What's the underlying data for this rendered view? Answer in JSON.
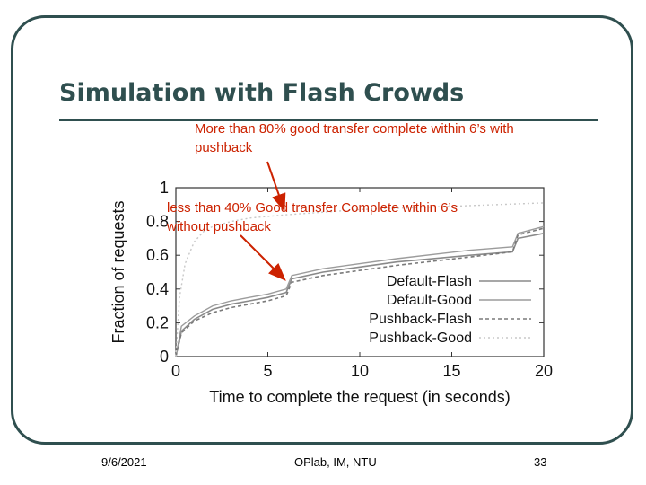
{
  "slide": {
    "title": "Simulation with Flash Crowds",
    "annotation_top": "More than 80% good transfer complete within 6’s with pushback",
    "annotation_top_line1": "More than 80% good transfer complete within 6’s with",
    "annotation_top_line2": "pushback",
    "annotation_mid_line1": "less than 40% Good transfer Complete  within 6’s",
    "annotation_mid_line2": "without pushback",
    "footer": {
      "date": "9/6/2021",
      "org": "OPlab, IM, NTU",
      "page": "33"
    },
    "accent_color": "#cc2200",
    "theme_color": "#2f4f4f"
  },
  "chart_data": {
    "type": "line",
    "xlabel": "Time to complete the request (in seconds)",
    "ylabel": "Fraction of requests",
    "xlim": [
      0,
      20
    ],
    "ylim": [
      0,
      1
    ],
    "x_ticks": [
      "0",
      "5",
      "10",
      "15",
      "20"
    ],
    "y_ticks": [
      "0",
      "0.2",
      "0.4",
      "0.6",
      "0.8",
      "1"
    ],
    "legend_position": "bottom-right",
    "series": [
      {
        "name": "Default-Flash",
        "points": [
          [
            0,
            0
          ],
          [
            0.3,
            0.15
          ],
          [
            1,
            0.22
          ],
          [
            2,
            0.28
          ],
          [
            3,
            0.31
          ],
          [
            4,
            0.33
          ],
          [
            5,
            0.35
          ],
          [
            6,
            0.38
          ],
          [
            6.3,
            0.46
          ],
          [
            8,
            0.5
          ],
          [
            12,
            0.56
          ],
          [
            16,
            0.6
          ],
          [
            18.3,
            0.62
          ],
          [
            18.6,
            0.7
          ],
          [
            20,
            0.73
          ]
        ]
      },
      {
        "name": "Default-Good",
        "points": [
          [
            0,
            0
          ],
          [
            0.3,
            0.18
          ],
          [
            1,
            0.24
          ],
          [
            2,
            0.3
          ],
          [
            3,
            0.33
          ],
          [
            4,
            0.35
          ],
          [
            5,
            0.37
          ],
          [
            6,
            0.4
          ],
          [
            6.3,
            0.48
          ],
          [
            8,
            0.52
          ],
          [
            12,
            0.58
          ],
          [
            16,
            0.63
          ],
          [
            18.3,
            0.65
          ],
          [
            18.6,
            0.73
          ],
          [
            20,
            0.77
          ]
        ]
      },
      {
        "name": "Pushback-Flash",
        "points": [
          [
            0,
            0
          ],
          [
            0.3,
            0.14
          ],
          [
            1,
            0.21
          ],
          [
            2,
            0.26
          ],
          [
            3,
            0.29
          ],
          [
            4,
            0.31
          ],
          [
            5,
            0.33
          ],
          [
            6,
            0.36
          ],
          [
            6.3,
            0.44
          ],
          [
            8,
            0.48
          ],
          [
            12,
            0.54
          ],
          [
            16,
            0.59
          ],
          [
            18.3,
            0.62
          ],
          [
            18.6,
            0.72
          ],
          [
            20,
            0.76
          ]
        ]
      },
      {
        "name": "Pushback-Good",
        "points": [
          [
            0,
            0
          ],
          [
            0.2,
            0.35
          ],
          [
            0.5,
            0.55
          ],
          [
            1,
            0.68
          ],
          [
            1.5,
            0.74
          ],
          [
            2,
            0.77
          ],
          [
            3,
            0.8
          ],
          [
            4,
            0.82
          ],
          [
            6,
            0.84
          ],
          [
            10,
            0.87
          ],
          [
            15,
            0.89
          ],
          [
            20,
            0.91
          ]
        ]
      }
    ],
    "series_colors": [
      "#8a8a8a",
      "#9c9c9c",
      "#7a7a7a",
      "#c8c8c8"
    ]
  }
}
